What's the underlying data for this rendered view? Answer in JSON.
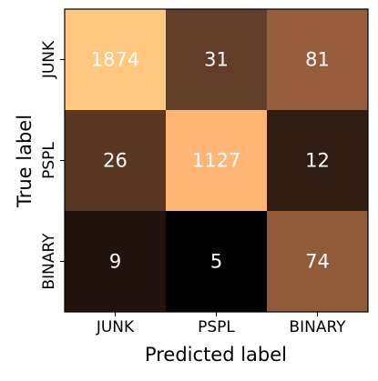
{
  "chart_data": {
    "type": "heatmap",
    "xlabel": "Predicted label",
    "ylabel": "True label",
    "x_categories": [
      "JUNK",
      "PSPL",
      "BINARY"
    ],
    "y_categories": [
      "JUNK",
      "PSPL",
      "BINARY"
    ],
    "values": [
      [
        1874,
        31,
        81
      ],
      [
        26,
        1127,
        12
      ],
      [
        9,
        5,
        74
      ]
    ],
    "colormap": "copper",
    "log_scale": true,
    "value_label_color": "#ffffff"
  }
}
